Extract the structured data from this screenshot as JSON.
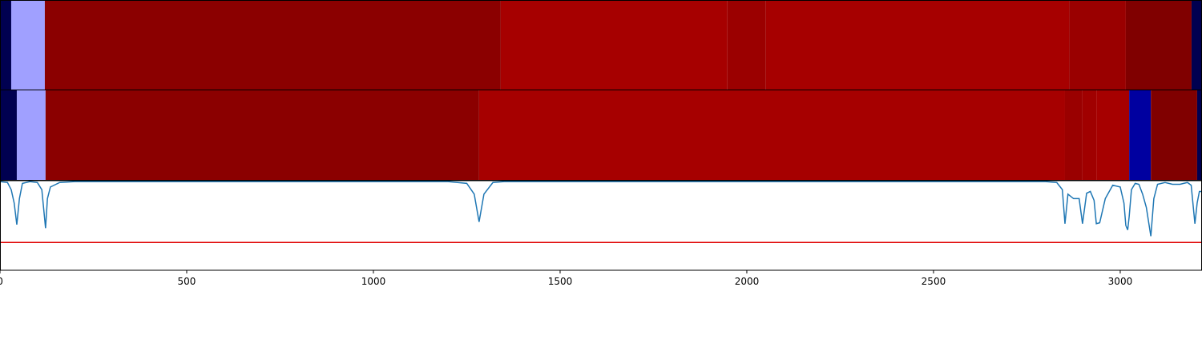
{
  "chart_data": [
    {
      "type": "segments",
      "xlim": [
        0,
        3219
      ],
      "bins": [
        0,
        30,
        120,
        1341,
        1948,
        2051,
        2863,
        3015,
        3191,
        3219
      ],
      "colors": [
        "#000050",
        "#a0a0ff",
        "#8b0000",
        "#a60000",
        "#9b0000",
        "#a60000",
        "#9a0000",
        "#800000",
        "#000050"
      ]
    },
    {
      "type": "segments",
      "xlim": [
        0,
        3219
      ],
      "bins": [
        0,
        45,
        122,
        1283,
        2852,
        2899,
        2936,
        3024,
        3082,
        3206,
        3219
      ],
      "colors": [
        "#000050",
        "#a0a0ff",
        "#8b0000",
        "#a60000",
        "#9a0000",
        "#a00000",
        "#a60000",
        "#0000a0",
        "#800000",
        "#000050"
      ]
    },
    {
      "type": "line",
      "xlim": [
        0,
        3219
      ],
      "ylim": [
        0,
        1
      ],
      "xticks": [
        0,
        500,
        1000,
        1500,
        2000,
        2500,
        3000
      ],
      "x": [
        0,
        20,
        30,
        38,
        45,
        52,
        60,
        80,
        100,
        112,
        122,
        127,
        135,
        160,
        200,
        1200,
        1250,
        1270,
        1283,
        1296,
        1320,
        1350,
        2800,
        2830,
        2845,
        2852,
        2860,
        2875,
        2890,
        2899,
        2910,
        2920,
        2930,
        2936,
        2945,
        2960,
        2980,
        3000,
        3010,
        3015,
        3020,
        3024,
        3030,
        3040,
        3050,
        3060,
        3070,
        3082,
        3090,
        3100,
        3120,
        3140,
        3160,
        3180,
        3190,
        3200,
        3206,
        3212,
        3219
      ],
      "series": [
        {
          "color": "#1f77b4",
          "values": [
            0.99,
            0.98,
            0.9,
            0.75,
            0.51,
            0.8,
            0.97,
            0.99,
            0.98,
            0.9,
            0.47,
            0.8,
            0.93,
            0.98,
            0.99,
            0.99,
            0.97,
            0.85,
            0.54,
            0.85,
            0.98,
            0.99,
            0.99,
            0.98,
            0.9,
            0.52,
            0.85,
            0.8,
            0.8,
            0.52,
            0.86,
            0.88,
            0.78,
            0.52,
            0.53,
            0.8,
            0.95,
            0.93,
            0.75,
            0.5,
            0.45,
            0.6,
            0.9,
            0.97,
            0.96,
            0.85,
            0.7,
            0.38,
            0.8,
            0.96,
            0.98,
            0.96,
            0.96,
            0.98,
            0.95,
            0.52,
            0.75,
            0.88,
            0.88
          ]
        }
      ],
      "threshold": 0.31,
      "threshold_color": "#e00000"
    }
  ]
}
